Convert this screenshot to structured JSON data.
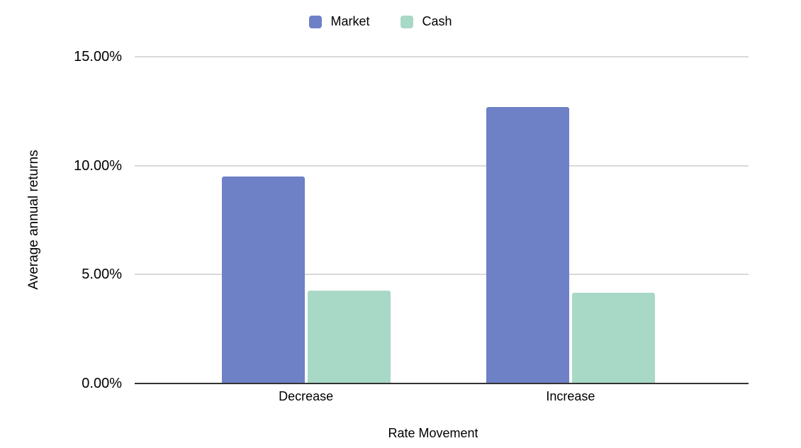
{
  "chart_data": {
    "type": "bar",
    "title": "",
    "categories": [
      "Decrease",
      "Increase"
    ],
    "series": [
      {
        "name": "Market",
        "color": "#6E80C6",
        "values": [
          9.5,
          12.7
        ]
      },
      {
        "name": "Cash",
        "color": "#A8D8C6",
        "values": [
          4.25,
          4.15
        ]
      }
    ],
    "xlabel": "Rate Movement",
    "ylabel": "Average annual returns",
    "ylim": [
      0,
      15
    ],
    "y_ticks": [
      {
        "value": 0,
        "label": "0.00%"
      },
      {
        "value": 5,
        "label": "5.00%"
      },
      {
        "value": 10,
        "label": "10.00%"
      },
      {
        "value": 15,
        "label": "15.00%"
      }
    ],
    "grid": true,
    "legend_position": "top-center",
    "colors": {
      "gridline": "#d9d9d9",
      "axis_line": "#333333",
      "text": "#000000",
      "background": "#ffffff"
    }
  }
}
